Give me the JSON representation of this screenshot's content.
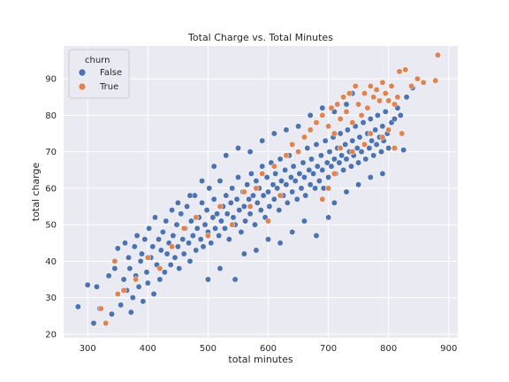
{
  "chart_data": {
    "type": "scatter",
    "title": "Total Charge vs. Total Minutes",
    "xlabel": "total minutes",
    "ylabel": "total charge",
    "xlim": [
      260,
      915
    ],
    "ylim": [
      19,
      99
    ],
    "xticks": [
      300,
      400,
      500,
      600,
      700,
      800,
      900
    ],
    "yticks": [
      20,
      30,
      40,
      50,
      60,
      70,
      80,
      90
    ],
    "grid": true,
    "legend": {
      "title": "churn",
      "position": "top-left"
    },
    "series": [
      {
        "name": "False",
        "color": "#4c72b0",
        "points": [
          [
            284,
            27.5
          ],
          [
            300,
            33.5
          ],
          [
            310,
            23
          ],
          [
            315,
            33
          ],
          [
            320,
            27
          ],
          [
            335,
            36
          ],
          [
            340,
            25.5
          ],
          [
            345,
            38
          ],
          [
            350,
            43.5
          ],
          [
            355,
            28
          ],
          [
            360,
            35
          ],
          [
            362,
            45
          ],
          [
            365,
            32
          ],
          [
            368,
            41
          ],
          [
            370,
            38
          ],
          [
            372,
            26
          ],
          [
            375,
            30
          ],
          [
            378,
            44
          ],
          [
            380,
            36
          ],
          [
            382,
            47
          ],
          [
            385,
            33
          ],
          [
            388,
            40
          ],
          [
            390,
            42
          ],
          [
            392,
            29
          ],
          [
            395,
            46
          ],
          [
            398,
            37
          ],
          [
            400,
            34
          ],
          [
            402,
            49
          ],
          [
            405,
            41
          ],
          [
            408,
            44
          ],
          [
            410,
            31
          ],
          [
            412,
            52
          ],
          [
            415,
            39
          ],
          [
            418,
            46
          ],
          [
            420,
            35
          ],
          [
            422,
            43
          ],
          [
            425,
            48
          ],
          [
            428,
            37
          ],
          [
            430,
            51
          ],
          [
            432,
            42
          ],
          [
            435,
            45
          ],
          [
            438,
            39
          ],
          [
            440,
            54
          ],
          [
            442,
            47
          ],
          [
            445,
            41
          ],
          [
            448,
            50
          ],
          [
            450,
            44
          ],
          [
            452,
            38
          ],
          [
            455,
            53
          ],
          [
            458,
            46
          ],
          [
            460,
            42
          ],
          [
            462,
            49
          ],
          [
            465,
            55
          ],
          [
            468,
            45
          ],
          [
            470,
            40
          ],
          [
            472,
            51
          ],
          [
            475,
            47
          ],
          [
            478,
            58
          ],
          [
            480,
            43
          ],
          [
            482,
            49
          ],
          [
            485,
            52
          ],
          [
            488,
            46
          ],
          [
            490,
            56
          ],
          [
            492,
            44
          ],
          [
            495,
            50
          ],
          [
            498,
            54
          ],
          [
            500,
            48
          ],
          [
            502,
            60
          ],
          [
            505,
            45
          ],
          [
            508,
            52
          ],
          [
            510,
            57
          ],
          [
            512,
            49
          ],
          [
            515,
            53
          ],
          [
            518,
            47
          ],
          [
            520,
            62
          ],
          [
            522,
            51
          ],
          [
            525,
            55
          ],
          [
            528,
            49
          ],
          [
            530,
            58
          ],
          [
            532,
            53
          ],
          [
            535,
            46
          ],
          [
            538,
            56
          ],
          [
            540,
            60
          ],
          [
            542,
            52
          ],
          [
            545,
            50
          ],
          [
            548,
            57
          ],
          [
            550,
            63
          ],
          [
            552,
            54
          ],
          [
            555,
            48
          ],
          [
            558,
            59
          ],
          [
            560,
            55
          ],
          [
            562,
            51
          ],
          [
            565,
            61
          ],
          [
            568,
            57
          ],
          [
            570,
            53
          ],
          [
            572,
            64
          ],
          [
            575,
            58
          ],
          [
            578,
            50
          ],
          [
            580,
            62
          ],
          [
            582,
            56
          ],
          [
            585,
            60
          ],
          [
            588,
            54
          ],
          [
            590,
            66
          ],
          [
            592,
            58
          ],
          [
            595,
            52
          ],
          [
            598,
            63
          ],
          [
            600,
            59
          ],
          [
            602,
            55
          ],
          [
            605,
            67
          ],
          [
            608,
            61
          ],
          [
            610,
            57
          ],
          [
            612,
            64
          ],
          [
            615,
            60
          ],
          [
            618,
            54
          ],
          [
            620,
            68
          ],
          [
            622,
            62
          ],
          [
            625,
            58
          ],
          [
            628,
            65
          ],
          [
            630,
            61
          ],
          [
            632,
            56
          ],
          [
            635,
            69
          ],
          [
            638,
            63
          ],
          [
            640,
            59
          ],
          [
            642,
            66
          ],
          [
            645,
            62
          ],
          [
            648,
            57
          ],
          [
            650,
            70
          ],
          [
            652,
            64
          ],
          [
            655,
            60
          ],
          [
            658,
            67
          ],
          [
            660,
            63
          ],
          [
            662,
            58
          ],
          [
            665,
            71
          ],
          [
            668,
            65
          ],
          [
            670,
            61
          ],
          [
            672,
            68
          ],
          [
            675,
            64
          ],
          [
            678,
            60
          ],
          [
            680,
            72
          ],
          [
            682,
            66
          ],
          [
            685,
            62
          ],
          [
            688,
            69
          ],
          [
            690,
            65
          ],
          [
            692,
            60
          ],
          [
            695,
            73
          ],
          [
            698,
            67
          ],
          [
            700,
            63
          ],
          [
            702,
            70
          ],
          [
            705,
            66
          ],
          [
            708,
            74
          ],
          [
            710,
            68
          ],
          [
            712,
            64
          ],
          [
            715,
            71
          ],
          [
            718,
            67
          ],
          [
            720,
            75
          ],
          [
            722,
            69
          ],
          [
            725,
            65
          ],
          [
            728,
            72
          ],
          [
            730,
            68
          ],
          [
            732,
            76
          ],
          [
            735,
            70
          ],
          [
            738,
            66
          ],
          [
            740,
            73
          ],
          [
            742,
            69
          ],
          [
            745,
            77
          ],
          [
            748,
            71
          ],
          [
            750,
            67
          ],
          [
            752,
            74
          ],
          [
            755,
            70
          ],
          [
            758,
            78
          ],
          [
            760,
            72
          ],
          [
            762,
            68
          ],
          [
            765,
            75
          ],
          [
            768,
            71
          ],
          [
            770,
            79
          ],
          [
            772,
            73
          ],
          [
            775,
            69
          ],
          [
            778,
            76
          ],
          [
            780,
            72
          ],
          [
            782,
            80
          ],
          [
            785,
            74
          ],
          [
            788,
            70
          ],
          [
            790,
            77
          ],
          [
            792,
            73
          ],
          [
            795,
            81
          ],
          [
            798,
            75
          ],
          [
            800,
            71
          ],
          [
            805,
            78
          ],
          [
            810,
            79
          ],
          [
            815,
            82
          ],
          [
            820,
            80
          ],
          [
            825,
            70.5
          ],
          [
            830,
            85
          ],
          [
            840,
            87.5
          ],
          [
            500,
            35
          ],
          [
            520,
            38
          ],
          [
            545,
            35
          ],
          [
            560,
            42
          ],
          [
            580,
            43
          ],
          [
            600,
            46
          ],
          [
            620,
            45
          ],
          [
            640,
            48
          ],
          [
            660,
            51
          ],
          [
            680,
            47
          ],
          [
            700,
            52
          ],
          [
            710,
            56
          ],
          [
            730,
            59
          ],
          [
            750,
            61
          ],
          [
            770,
            63
          ],
          [
            790,
            64
          ],
          [
            450,
            56
          ],
          [
            470,
            58
          ],
          [
            490,
            62
          ],
          [
            510,
            66
          ],
          [
            530,
            69
          ],
          [
            550,
            71
          ],
          [
            570,
            70
          ],
          [
            590,
            73
          ],
          [
            610,
            75
          ],
          [
            630,
            76
          ],
          [
            650,
            77
          ],
          [
            670,
            80
          ],
          [
            690,
            82
          ],
          [
            710,
            81
          ],
          [
            730,
            83
          ],
          [
            740,
            86
          ]
        ]
      },
      {
        "name": "True",
        "color": "#dd8452",
        "points": [
          [
            322,
            27
          ],
          [
            330,
            23
          ],
          [
            345,
            40
          ],
          [
            350,
            31
          ],
          [
            360,
            32
          ],
          [
            380,
            35
          ],
          [
            400,
            41
          ],
          [
            420,
            38
          ],
          [
            440,
            44
          ],
          [
            460,
            49
          ],
          [
            480,
            52
          ],
          [
            500,
            47
          ],
          [
            520,
            55
          ],
          [
            540,
            50
          ],
          [
            560,
            59
          ],
          [
            570,
            55
          ],
          [
            580,
            60
          ],
          [
            590,
            64
          ],
          [
            600,
            51
          ],
          [
            610,
            66
          ],
          [
            620,
            58
          ],
          [
            630,
            69
          ],
          [
            640,
            72
          ],
          [
            650,
            70
          ],
          [
            660,
            74
          ],
          [
            670,
            76
          ],
          [
            680,
            78
          ],
          [
            690,
            80
          ],
          [
            700,
            77
          ],
          [
            705,
            82
          ],
          [
            710,
            75
          ],
          [
            715,
            83
          ],
          [
            720,
            79
          ],
          [
            725,
            85
          ],
          [
            730,
            81
          ],
          [
            735,
            86
          ],
          [
            740,
            78
          ],
          [
            745,
            88
          ],
          [
            750,
            83
          ],
          [
            755,
            80
          ],
          [
            760,
            86
          ],
          [
            765,
            82
          ],
          [
            770,
            88
          ],
          [
            775,
            85
          ],
          [
            780,
            87
          ],
          [
            785,
            84
          ],
          [
            790,
            89
          ],
          [
            795,
            86
          ],
          [
            800,
            84
          ],
          [
            805,
            88
          ],
          [
            810,
            83
          ],
          [
            815,
            85
          ],
          [
            818,
            92
          ],
          [
            822,
            75
          ],
          [
            828,
            92.5
          ],
          [
            838,
            88
          ],
          [
            848,
            90
          ],
          [
            858,
            89
          ],
          [
            878,
            89.5
          ],
          [
            882,
            96.5
          ],
          [
            700,
            60
          ],
          [
            690,
            57
          ],
          [
            710,
            64
          ],
          [
            720,
            71
          ],
          [
            740,
            70
          ],
          [
            760,
            72
          ],
          [
            770,
            75
          ],
          [
            790,
            74
          ],
          [
            800,
            76
          ],
          [
            810,
            71
          ]
        ]
      }
    ]
  }
}
